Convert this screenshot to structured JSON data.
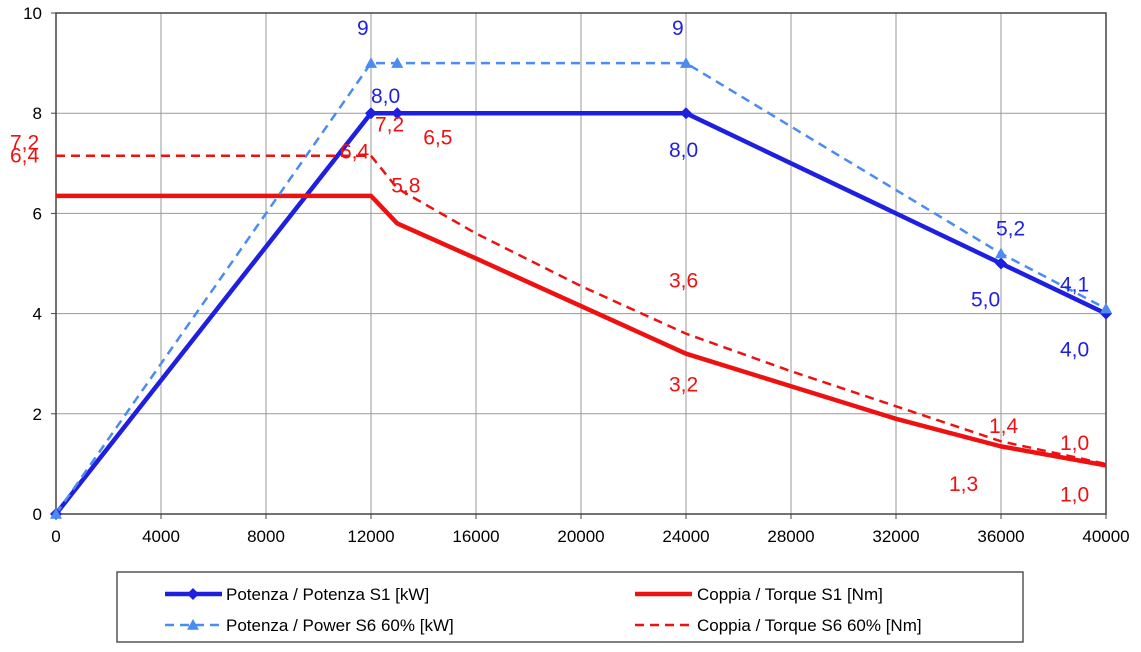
{
  "chart_data": {
    "type": "line",
    "title": "",
    "xlabel": "",
    "ylabel": "",
    "xlim": [
      0,
      40000
    ],
    "ylim": [
      0,
      10
    ],
    "xticks": [
      0,
      4000,
      8000,
      12000,
      16000,
      20000,
      24000,
      28000,
      32000,
      36000,
      40000
    ],
    "yticks": [
      0,
      2,
      4,
      6,
      8,
      10
    ],
    "grid": true,
    "legend_position": "bottom",
    "series": [
      {
        "name": "Potenza / Potenza S1 [kW]",
        "color": "#1f1fe0",
        "style": "solid",
        "marker": "diamond",
        "x": [
          0,
          12000,
          13000,
          24000,
          36000,
          40000
        ],
        "y": [
          0,
          8.0,
          8.0,
          8.0,
          5.0,
          4.0
        ]
      },
      {
        "name": "Coppia / Torque S1 [Nm]",
        "color": "#ee1111",
        "style": "solid",
        "marker": "none",
        "x": [
          0,
          12000,
          13000,
          16000,
          20000,
          24000,
          28000,
          32000,
          36000,
          40000
        ],
        "y": [
          6.35,
          6.35,
          5.8,
          5.1,
          4.15,
          3.2,
          2.55,
          1.9,
          1.35,
          0.97
        ]
      },
      {
        "name": "Potenza / Power S6 60% [kW]",
        "color": "#4a8cf0",
        "style": "dashed",
        "marker": "triangle",
        "x": [
          0,
          12000,
          13000,
          24000,
          36000,
          40000
        ],
        "y": [
          0,
          9,
          9,
          9,
          5.2,
          4.1
        ]
      },
      {
        "name": "Coppia / Torque S6 60% [Nm]",
        "color": "#ee1111",
        "style": "dashed",
        "marker": "none",
        "x": [
          0,
          12000,
          13000,
          16000,
          20000,
          24000,
          28000,
          32000,
          36000,
          40000
        ],
        "y": [
          7.15,
          7.15,
          6.5,
          5.6,
          4.55,
          3.6,
          2.85,
          2.15,
          1.45,
          1.0
        ]
      }
    ],
    "annotations": [
      {
        "text": "9",
        "x": 12000,
        "y": 9,
        "color": "#1f1fe0"
      },
      {
        "text": "9",
        "x": 24000,
        "y": 9,
        "color": "#1f1fe0"
      },
      {
        "text": "8,0",
        "x": 12000,
        "y": 8.0,
        "color": "#1f1fe0"
      },
      {
        "text": "8,0",
        "x": 24000,
        "y": 8.0,
        "color": "#1f1fe0"
      },
      {
        "text": "5,2",
        "x": 36000,
        "y": 5.2,
        "color": "#1f1fe0"
      },
      {
        "text": "5,0",
        "x": 36000,
        "y": 5.0,
        "color": "#1f1fe0"
      },
      {
        "text": "4,1",
        "x": 40000,
        "y": 4.1,
        "color": "#1f1fe0"
      },
      {
        "text": "4,0",
        "x": 40000,
        "y": 4.0,
        "color": "#1f1fe0"
      },
      {
        "text": "7,2",
        "x": 0,
        "y": 7.2,
        "color": "#ee1111"
      },
      {
        "text": "7,2",
        "x": 12000,
        "y": 7.2,
        "color": "#ee1111"
      },
      {
        "text": "6,5",
        "x": 13000,
        "y": 6.5,
        "color": "#ee1111"
      },
      {
        "text": "6,4",
        "x": 0,
        "y": 6.4,
        "color": "#ee1111"
      },
      {
        "text": "6,4",
        "x": 12000,
        "y": 6.4,
        "color": "#ee1111"
      },
      {
        "text": "5,8",
        "x": 13000,
        "y": 5.8,
        "color": "#ee1111"
      },
      {
        "text": "3,6",
        "x": 24000,
        "y": 3.6,
        "color": "#ee1111"
      },
      {
        "text": "3,2",
        "x": 24000,
        "y": 3.2,
        "color": "#ee1111"
      },
      {
        "text": "1,4",
        "x": 36000,
        "y": 1.4,
        "color": "#ee1111"
      },
      {
        "text": "1,3",
        "x": 36000,
        "y": 1.3,
        "color": "#ee1111"
      },
      {
        "text": "1,0",
        "x": 40000,
        "y": 1.0,
        "color": "#ee1111"
      },
      {
        "text": "1,0",
        "x": 40000,
        "y": 0.97,
        "color": "#ee1111"
      }
    ]
  }
}
